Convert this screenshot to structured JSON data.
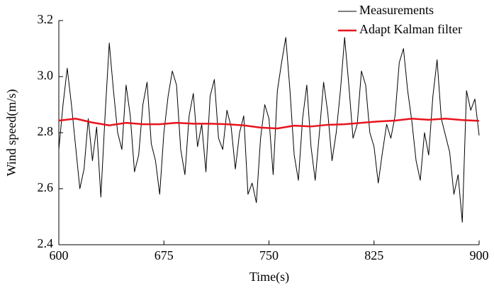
{
  "chart_data": {
    "type": "line",
    "x_label": "Time(s)",
    "y_label": "Wind speed(m/s)",
    "xlim": [
      600,
      900
    ],
    "xticks": [
      600,
      675,
      750,
      825,
      900
    ],
    "ylim": [
      2.4,
      3.2
    ],
    "yticks": [
      2.4,
      2.6,
      2.8,
      {
        "value": 3,
        "label": "3.0"
      },
      3.2
    ],
    "grid": false,
    "legend": "upper right",
    "series": [
      {
        "name": "Measurements",
        "color": "#000000",
        "width": 1,
        "x": [
          600,
          603,
          606,
          609,
          612,
          615,
          618,
          621,
          624,
          627,
          630,
          633,
          636,
          639,
          642,
          645,
          648,
          651,
          654,
          657,
          660,
          663,
          666,
          669,
          672,
          675,
          678,
          681,
          684,
          687,
          690,
          693,
          696,
          699,
          702,
          705,
          708,
          711,
          714,
          717,
          720,
          723,
          726,
          729,
          732,
          735,
          738,
          741,
          744,
          747,
          750,
          753,
          756,
          759,
          762,
          765,
          768,
          771,
          774,
          777,
          780,
          783,
          786,
          789,
          792,
          795,
          798,
          801,
          804,
          807,
          810,
          813,
          816,
          819,
          822,
          825,
          828,
          831,
          834,
          837,
          840,
          843,
          846,
          849,
          852,
          855,
          858,
          861,
          864,
          867,
          870,
          873,
          876,
          879,
          882,
          885,
          888,
          891,
          894,
          897,
          900
        ],
        "values": [
          2.74,
          2.9,
          3.03,
          2.9,
          2.75,
          2.6,
          2.67,
          2.85,
          2.7,
          2.82,
          2.57,
          2.86,
          3.12,
          2.95,
          2.8,
          2.74,
          2.97,
          2.86,
          2.66,
          2.72,
          2.9,
          2.98,
          2.76,
          2.7,
          2.58,
          2.8,
          2.93,
          3.02,
          2.97,
          2.74,
          2.65,
          2.86,
          2.94,
          2.75,
          2.83,
          2.66,
          2.93,
          2.99,
          2.78,
          2.74,
          2.88,
          2.82,
          2.67,
          2.8,
          2.86,
          2.58,
          2.62,
          2.55,
          2.78,
          2.9,
          2.85,
          2.65,
          2.95,
          3.05,
          3.14,
          2.95,
          2.72,
          2.63,
          2.85,
          2.97,
          2.75,
          2.63,
          2.8,
          2.98,
          2.87,
          2.7,
          2.8,
          2.95,
          3.14,
          2.97,
          2.78,
          2.83,
          3.02,
          2.97,
          2.8,
          2.75,
          2.62,
          2.73,
          2.83,
          2.78,
          2.86,
          3.05,
          3.1,
          2.95,
          2.84,
          2.7,
          2.63,
          2.8,
          2.72,
          2.93,
          3.06,
          2.85,
          2.79,
          2.73,
          2.58,
          2.65,
          2.48,
          2.95,
          2.88,
          2.92,
          2.79
        ]
      },
      {
        "name": "Adapt Kalman filter",
        "color": "#e8141c",
        "width": 2.5,
        "x": [
          600,
          612,
          624,
          636,
          648,
          660,
          672,
          684,
          696,
          708,
          720,
          732,
          744,
          756,
          768,
          780,
          792,
          804,
          816,
          828,
          840,
          852,
          864,
          876,
          888,
          900
        ],
        "values": [
          2.843,
          2.85,
          2.836,
          2.826,
          2.835,
          2.83,
          2.83,
          2.835,
          2.832,
          2.832,
          2.83,
          2.826,
          2.818,
          2.815,
          2.825,
          2.822,
          2.828,
          2.83,
          2.835,
          2.84,
          2.843,
          2.85,
          2.846,
          2.85,
          2.845,
          2.842
        ]
      }
    ]
  }
}
